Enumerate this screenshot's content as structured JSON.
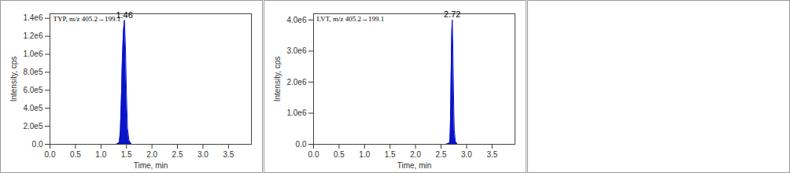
{
  "chart_data": [
    {
      "type": "area",
      "title": "TYP, m/z 405.2→199.1",
      "x_label": "Time, min",
      "y_label": "Intensity, cps",
      "color": "#0a14c8",
      "x": [
        0.0,
        1.3,
        1.36,
        1.38,
        1.4,
        1.42,
        1.44,
        1.46,
        1.48,
        1.5,
        1.52,
        1.55,
        1.6,
        3.9
      ],
      "values": [
        0,
        0,
        20000,
        150000,
        500000,
        950000,
        1250000,
        1380000,
        1100000,
        550000,
        180000,
        40000,
        0,
        0
      ],
      "annotations": [
        {
          "x": 1.46,
          "y": 1380000,
          "text": "1.46"
        }
      ],
      "xlim": [
        0,
        3.95
      ],
      "xticks": [
        {
          "value": 0,
          "label": "0.0"
        },
        0.5,
        {
          "value": 1,
          "label": "1.0"
        },
        1.5,
        {
          "value": 2,
          "label": "2.0"
        },
        2.5,
        {
          "value": 3,
          "label": "3.0"
        },
        3.5
      ],
      "ylim": [
        0,
        1450000
      ],
      "yticks": [
        {
          "value": 0,
          "label": "0.0"
        },
        {
          "value": 200000,
          "label": "2.0e5"
        },
        {
          "value": 400000,
          "label": "4.0e5"
        },
        {
          "value": 600000,
          "label": "6.0e5"
        },
        {
          "value": 800000,
          "label": "8.0e5"
        },
        {
          "value": 1000000,
          "label": "1.0e6"
        },
        {
          "value": 1200000,
          "label": "1.2e6"
        },
        {
          "value": 1400000,
          "label": "1.4e6"
        }
      ]
    },
    {
      "type": "area",
      "title": "LVT, m/z 405.2→199.1",
      "x_label": "Time, min",
      "y_label": "Intensity, cps",
      "color": "#0a14c8",
      "x": [
        0.0,
        2.6,
        2.67,
        2.68,
        2.69,
        2.7,
        2.71,
        2.72,
        2.73,
        2.74,
        2.75,
        2.76,
        2.78,
        2.82,
        3.9
      ],
      "values": [
        0,
        0,
        50000,
        400000,
        1300000,
        2600000,
        3600000,
        4000000,
        3300000,
        2200000,
        1100000,
        450000,
        100000,
        0,
        0
      ],
      "annotations": [
        {
          "x": 2.72,
          "y": 4000000,
          "text": "2.72"
        }
      ],
      "xlim": [
        0,
        3.95
      ],
      "xticks": [
        {
          "value": 0,
          "label": "0.0"
        },
        0.5,
        {
          "value": 1,
          "label": "1.0"
        },
        1.5,
        {
          "value": 2,
          "label": "2.0"
        },
        2.5,
        {
          "value": 3,
          "label": "3.0"
        },
        3.5
      ],
      "ylim": [
        0,
        4200000
      ],
      "yticks": [
        {
          "value": 0,
          "label": "0.0"
        },
        {
          "value": 1000000,
          "label": "1.0e6"
        },
        {
          "value": 2000000,
          "label": "2.0e6"
        },
        {
          "value": 3000000,
          "label": "3.0e6"
        },
        {
          "value": 4000000,
          "label": "4.0e6"
        }
      ]
    }
  ]
}
